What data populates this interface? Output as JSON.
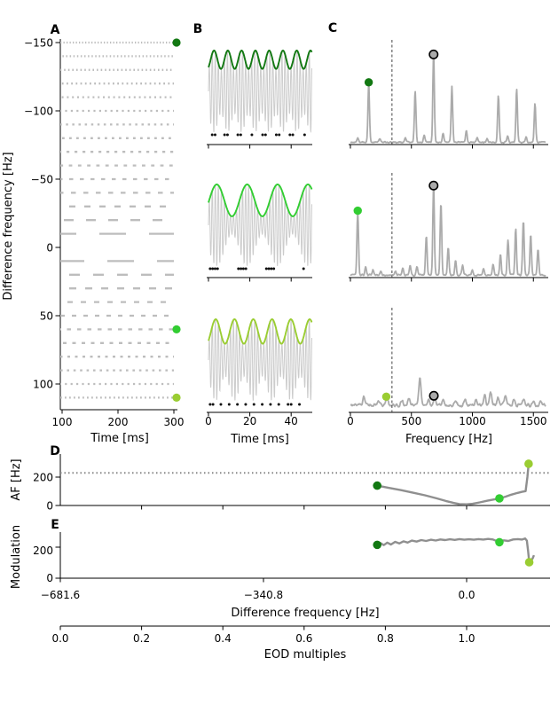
{
  "colors": {
    "dark_green": "#127812",
    "lime_green": "#32CD32",
    "yellow_green": "#9ACD32",
    "line_gray": "#8f8f8f",
    "spectrum_gray": "#ababab",
    "raster_gray": "#bdbdbd",
    "carrier_gray": "#cccccc",
    "circle_marker_fill": "#aaaaaa"
  },
  "chart_data": {
    "panelA": {
      "type": "raster",
      "label": "A",
      "ylabel": "Difference frequency [Hz]",
      "xlabel": "Time [ms]",
      "xlim": [
        100,
        300
      ],
      "xticks": [
        "100",
        "200",
        "300"
      ],
      "yticks": [
        "−150",
        "−100",
        "−50",
        "0",
        "50",
        "100"
      ],
      "rows": [
        {
          "df": -150,
          "dash": 1.3,
          "gap": 2.2
        },
        {
          "df": -140,
          "dash": 1.5,
          "gap": 2.6
        },
        {
          "df": -130,
          "dash": 1.6,
          "gap": 3.0
        },
        {
          "df": -120,
          "dash": 1.8,
          "gap": 3.4
        },
        {
          "df": -110,
          "dash": 2.0,
          "gap": 3.8
        },
        {
          "df": -100,
          "dash": 2.2,
          "gap": 4.2
        },
        {
          "df": -90,
          "dash": 2.5,
          "gap": 4.6
        },
        {
          "df": -80,
          "dash": 2.8,
          "gap": 5.2
        },
        {
          "df": -70,
          "dash": 3.2,
          "gap": 5.8
        },
        {
          "df": -60,
          "dash": 3.8,
          "gap": 6.5
        },
        {
          "df": -50,
          "dash": 4.5,
          "gap": 7.5
        },
        {
          "df": -40,
          "dash": 5.5,
          "gap": 8.5
        },
        {
          "df": -30,
          "dash": 7.0,
          "gap": 10.0
        },
        {
          "df": -20,
          "dash": 11.0,
          "gap": 14.0
        },
        {
          "df": -10,
          "dash": 30.0,
          "gap": 26.0
        },
        {
          "df": 10,
          "dash": 30.0,
          "gap": 26.0
        },
        {
          "df": 20,
          "dash": 12.0,
          "gap": 15.0
        },
        {
          "df": 30,
          "dash": 8.0,
          "gap": 10.0
        },
        {
          "df": 40,
          "dash": 6.0,
          "gap": 9.0
        },
        {
          "df": 50,
          "dash": 5.0,
          "gap": 8.0
        },
        {
          "df": 60,
          "dash": 4.5,
          "gap": 7.0
        },
        {
          "df": 70,
          "dash": 4.0,
          "gap": 6.5
        },
        {
          "df": 80,
          "dash": 3.0,
          "gap": 5.5
        },
        {
          "df": 90,
          "dash": 2.6,
          "gap": 4.8
        },
        {
          "df": 100,
          "dash": 2.2,
          "gap": 4.2
        },
        {
          "df": 110,
          "dash": 1.8,
          "gap": 3.2
        }
      ],
      "markers": [
        {
          "df": -150,
          "color": "#127812"
        },
        {
          "df": 60,
          "color": "#32CD32"
        },
        {
          "df": 110,
          "color": "#9ACD32"
        }
      ]
    },
    "panelB": {
      "type": "waveform",
      "label": "B",
      "xlabel": "Time [ms]",
      "xticks": [
        "0",
        "20",
        "40"
      ],
      "xlim_ms": [
        0,
        50
      ],
      "carrier_hz": 682,
      "subplots": [
        {
          "am_hz": 150,
          "depth": 0.45,
          "peak_ms": 2.7,
          "color": "#127812",
          "spikes_ms": [
            1.8,
            3.2,
            7.8,
            9.2,
            14.2,
            15.6,
            21.0,
            26.2,
            27.6,
            32.8,
            34.2,
            39.4,
            40.8,
            46.5
          ]
        },
        {
          "am_hz": 68,
          "depth": 0.78,
          "peak_ms": 4.0,
          "color": "#32CD32",
          "spikes_ms": [
            0.8,
            2.0,
            3.2,
            4.4,
            14.5,
            15.7,
            16.9,
            18.1,
            28.0,
            29.2,
            30.4,
            31.6,
            46.0
          ]
        },
        {
          "am_hz": 110,
          "depth": 0.6,
          "peak_ms": 3.5,
          "color": "#9ACD32",
          "spikes_ms": [
            0.8,
            2.2,
            6.0,
            10.0,
            14.0,
            18.0,
            22.0,
            26.0,
            30.0,
            34.0,
            38.5,
            40.0,
            44.0
          ]
        }
      ]
    },
    "panelC": {
      "type": "spectrum",
      "label": "C",
      "xlabel": "Frequency [Hz]",
      "xticks": [
        "0",
        "500",
        "1000",
        "1500"
      ],
      "xlim": [
        0,
        1600
      ],
      "dashed_vline_hz": 340.8,
      "subplots": [
        {
          "peak_width": 9,
          "base": 0.015,
          "noise": 0.02,
          "seed": 7,
          "peaks": [
            [
              60,
              0.05
            ],
            [
              150,
              0.63
            ],
            [
              240,
              0.04
            ],
            [
              450,
              0.05
            ],
            [
              531,
              0.55
            ],
            [
              605,
              0.07
            ],
            [
              682,
              0.93
            ],
            [
              760,
              0.1
            ],
            [
              832,
              0.6
            ],
            [
              950,
              0.13
            ],
            [
              1040,
              0.05
            ],
            [
              1120,
              0.04
            ],
            [
              1213,
              0.5
            ],
            [
              1290,
              0.07
            ],
            [
              1363,
              0.57
            ],
            [
              1440,
              0.06
            ],
            [
              1513,
              0.42
            ]
          ],
          "green_marker": {
            "hz": 150,
            "h": 0.63,
            "color": "#127812"
          },
          "circle_marker": {
            "hz": 682,
            "h": 0.93
          }
        },
        {
          "peak_width": 9,
          "base": 0.015,
          "noise": 0.025,
          "seed": 11,
          "peaks": [
            [
              60,
              0.68
            ],
            [
              125,
              0.09
            ],
            [
              185,
              0.06
            ],
            [
              250,
              0.05
            ],
            [
              370,
              0.04
            ],
            [
              430,
              0.07
            ],
            [
              490,
              0.11
            ],
            [
              545,
              0.09
            ],
            [
              622,
              0.42
            ],
            [
              682,
              0.95
            ],
            [
              742,
              0.78
            ],
            [
              802,
              0.3
            ],
            [
              862,
              0.16
            ],
            [
              920,
              0.1
            ],
            [
              1000,
              0.06
            ],
            [
              1090,
              0.07
            ],
            [
              1170,
              0.12
            ],
            [
              1230,
              0.22
            ],
            [
              1292,
              0.38
            ],
            [
              1355,
              0.5
            ],
            [
              1418,
              0.58
            ],
            [
              1478,
              0.44
            ],
            [
              1538,
              0.28
            ]
          ],
          "green_marker": {
            "hz": 60,
            "h": 0.68,
            "color": "#32CD32"
          },
          "circle_marker": {
            "hz": 682,
            "h": 0.95
          }
        },
        {
          "peak_width": 13,
          "base": 0.05,
          "noise": 0.05,
          "seed": 5,
          "peaks": [
            [
              110,
              0.09
            ],
            [
              230,
              0.06
            ],
            [
              300,
              0.09
            ],
            [
              420,
              0.05
            ],
            [
              480,
              0.07
            ],
            [
              570,
              0.3
            ],
            [
              640,
              0.07
            ],
            [
              690,
              0.08
            ],
            [
              760,
              0.06
            ],
            [
              860,
              0.05
            ],
            [
              940,
              0.06
            ],
            [
              1030,
              0.05
            ],
            [
              1100,
              0.11
            ],
            [
              1150,
              0.15
            ],
            [
              1210,
              0.09
            ],
            [
              1270,
              0.11
            ],
            [
              1340,
              0.07
            ],
            [
              1420,
              0.06
            ],
            [
              1500,
              0.05
            ],
            [
              1560,
              0.04
            ]
          ],
          "green_marker": {
            "hz": 294,
            "h": 0.13,
            "color": "#9ACD32"
          },
          "circle_marker": {
            "hz": 684,
            "h": 0.14
          }
        }
      ]
    },
    "panelD": {
      "type": "line",
      "label": "D",
      "ylabel": "AF [Hz]",
      "yticks": [
        "0",
        "200"
      ],
      "ylim": [
        0,
        330
      ],
      "dotted_hline": 230,
      "points": [
        [
          -150,
          140
        ],
        [
          -130,
          124
        ],
        [
          -110,
          108
        ],
        [
          -90,
          90
        ],
        [
          -70,
          72
        ],
        [
          -50,
          50
        ],
        [
          -35,
          32
        ],
        [
          -22,
          18
        ],
        [
          -12,
          10
        ],
        [
          0,
          8
        ],
        [
          10,
          12
        ],
        [
          22,
          22
        ],
        [
          35,
          34
        ],
        [
          45,
          42
        ],
        [
          55,
          50
        ],
        [
          65,
          62
        ],
        [
          75,
          76
        ],
        [
          85,
          88
        ],
        [
          93,
          96
        ],
        [
          99,
          101
        ],
        [
          102,
          200
        ],
        [
          104,
          294
        ]
      ],
      "markers": [
        {
          "df": -150,
          "value": 140,
          "color": "#127812"
        },
        {
          "df": 55,
          "value": 50,
          "color": "#32CD32"
        },
        {
          "df": 104,
          "value": 294,
          "color": "#9ACD32"
        }
      ]
    },
    "panelE": {
      "type": "line",
      "label": "E",
      "ylabel": "Modulation",
      "yticks": [
        "0",
        "200"
      ],
      "ylim": [
        0,
        310
      ],
      "xlabel": "Difference frequency [Hz]",
      "xticks": [
        "−681.6",
        "−340.8",
        "0.0"
      ],
      "xtick_values": [
        -681.6,
        -340.8,
        0.0
      ],
      "xlim": [
        -681.6,
        140
      ],
      "points": [
        [
          -150,
          215
        ],
        [
          -144,
          226
        ],
        [
          -139,
          213
        ],
        [
          -133,
          229
        ],
        [
          -127,
          217
        ],
        [
          -120,
          234
        ],
        [
          -113,
          224
        ],
        [
          -106,
          238
        ],
        [
          -99,
          230
        ],
        [
          -92,
          242
        ],
        [
          -84,
          236
        ],
        [
          -76,
          246
        ],
        [
          -68,
          240
        ],
        [
          -60,
          248
        ],
        [
          -52,
          243
        ],
        [
          -44,
          250
        ],
        [
          -36,
          246
        ],
        [
          -28,
          251
        ],
        [
          -20,
          247
        ],
        [
          -12,
          252
        ],
        [
          -4,
          248
        ],
        [
          4,
          251
        ],
        [
          12,
          248
        ],
        [
          20,
          252
        ],
        [
          28,
          249
        ],
        [
          36,
          253
        ],
        [
          44,
          250
        ],
        [
          55,
          232
        ],
        [
          62,
          244
        ],
        [
          70,
          240
        ],
        [
          78,
          250
        ],
        [
          86,
          252
        ],
        [
          93,
          249
        ],
        [
          98,
          256
        ],
        [
          101,
          242
        ],
        [
          103,
          180
        ],
        [
          105,
          103
        ],
        [
          108,
          112
        ],
        [
          111,
          130
        ],
        [
          113,
          148
        ]
      ],
      "markers": [
        {
          "df": -150,
          "value": 215,
          "color": "#127812"
        },
        {
          "df": 55,
          "value": 232,
          "color": "#32CD32"
        },
        {
          "df": 105,
          "value": 103,
          "color": "#9ACD32"
        }
      ]
    },
    "eod_axis": {
      "label": "EOD multiples",
      "xticks": [
        "0.0",
        "0.2",
        "0.4",
        "0.6",
        "0.8",
        "1.0"
      ],
      "xtick_values": [
        0.0,
        0.2,
        0.4,
        0.6,
        0.8,
        1.0
      ]
    }
  }
}
